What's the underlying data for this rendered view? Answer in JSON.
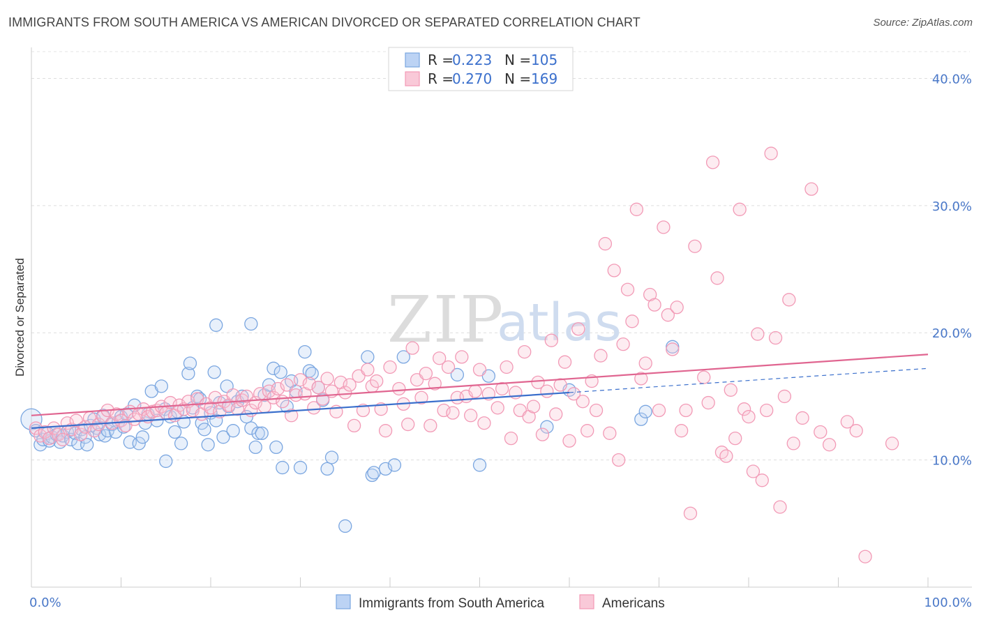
{
  "title": "IMMIGRANTS FROM SOUTH AMERICA VS AMERICAN DIVORCED OR SEPARATED CORRELATION CHART",
  "source": "Source: ZipAtlas.com",
  "watermark": {
    "part1": "ZIP",
    "part2": "atlas"
  },
  "chart_data": {
    "type": "scatter",
    "ylabel": "Divorced or Separated",
    "xlim": [
      0,
      100
    ],
    "ylim": [
      0,
      42
    ],
    "x_tick_labels": [
      "0.0%",
      "100.0%"
    ],
    "y_ticks": [
      10,
      20,
      30,
      40
    ],
    "y_tick_labels": [
      "10.0%",
      "20.0%",
      "30.0%",
      "40.0%"
    ],
    "grid": "horizontal dashed",
    "legend": {
      "position": "top-center",
      "rows": [
        {
          "r_label": "R = ",
          "r_value": "0.223",
          "n_label": "N = ",
          "n_value": "105"
        },
        {
          "r_label": "R = ",
          "r_value": "0.270",
          "n_label": "N = ",
          "n_value": "169"
        }
      ]
    },
    "series": [
      {
        "name": "Immigrants from South America",
        "color": "#7aa6e0",
        "trend_color": "#3a6fcc",
        "trend": {
          "x0": 0,
          "y0": 12.5,
          "x1": 60,
          "y1": 15.3,
          "dash_to_x": 100,
          "dash_to_y": 17.2
        },
        "points": [
          [
            0,
            13.2
          ],
          [
            0.5,
            12.3
          ],
          [
            1,
            11.2
          ],
          [
            1.3,
            11.6
          ],
          [
            1.8,
            12.1
          ],
          [
            2,
            11.5
          ],
          [
            2.3,
            11.8
          ],
          [
            2.8,
            12.0
          ],
          [
            3.2,
            11.4
          ],
          [
            3.5,
            11.9
          ],
          [
            4,
            12.2
          ],
          [
            4.4,
            11.6
          ],
          [
            4.9,
            12.1
          ],
          [
            5.2,
            11.3
          ],
          [
            5.6,
            12.4
          ],
          [
            6,
            11.8
          ],
          [
            6.2,
            11.2
          ],
          [
            6.6,
            12.7
          ],
          [
            7,
            13.2
          ],
          [
            7.3,
            12.5
          ],
          [
            7.6,
            12.0
          ],
          [
            8,
            13.5
          ],
          [
            8.2,
            11.9
          ],
          [
            8.5,
            12.3
          ],
          [
            9,
            12.8
          ],
          [
            9.4,
            12.2
          ],
          [
            9.7,
            13.0
          ],
          [
            10,
            13.4
          ],
          [
            10.3,
            12.6
          ],
          [
            10.6,
            13.6
          ],
          [
            11,
            11.4
          ],
          [
            11.5,
            14.3
          ],
          [
            12,
            11.3
          ],
          [
            12.4,
            11.8
          ],
          [
            12.7,
            12.9
          ],
          [
            13,
            13.6
          ],
          [
            13.4,
            15.4
          ],
          [
            14,
            13.1
          ],
          [
            14.5,
            15.8
          ],
          [
            14.9,
            14.0
          ],
          [
            15,
            9.9
          ],
          [
            15.5,
            13.4
          ],
          [
            16,
            12.2
          ],
          [
            16.3,
            13.8
          ],
          [
            16.7,
            11.3
          ],
          [
            17,
            13.0
          ],
          [
            17.5,
            16.8
          ],
          [
            17.7,
            17.6
          ],
          [
            18,
            14.1
          ],
          [
            18.5,
            15.0
          ],
          [
            18.8,
            14.8
          ],
          [
            19,
            12.9
          ],
          [
            19.3,
            12.4
          ],
          [
            19.7,
            11.2
          ],
          [
            20,
            13.7
          ],
          [
            20.4,
            16.9
          ],
          [
            20.6,
            13.1
          ],
          [
            21,
            14.5
          ],
          [
            21.4,
            11.8
          ],
          [
            21.8,
            15.8
          ],
          [
            22,
            14.2
          ],
          [
            22.5,
            12.3
          ],
          [
            23,
            14.6
          ],
          [
            23.5,
            15.0
          ],
          [
            24,
            13.4
          ],
          [
            24.5,
            12.5
          ],
          [
            25,
            11.0
          ],
          [
            25.3,
            12.1
          ],
          [
            25.7,
            12.1
          ],
          [
            26,
            15.1
          ],
          [
            26.5,
            15.9
          ],
          [
            27,
            17.2
          ],
          [
            27.3,
            11.0
          ],
          [
            27.8,
            16.9
          ],
          [
            28,
            9.4
          ],
          [
            28.5,
            14.2
          ],
          [
            29,
            16.2
          ],
          [
            29.5,
            15.4
          ],
          [
            30,
            9.4
          ],
          [
            30.5,
            18.5
          ],
          [
            31,
            17.0
          ],
          [
            31.3,
            16.8
          ],
          [
            32,
            15.7
          ],
          [
            32.5,
            14.7
          ],
          [
            33,
            9.3
          ],
          [
            33.5,
            10.2
          ],
          [
            35,
            4.8
          ],
          [
            37.5,
            18.1
          ],
          [
            38,
            8.8
          ],
          [
            38.2,
            9.0
          ],
          [
            39.5,
            9.3
          ],
          [
            40.5,
            9.6
          ],
          [
            41.5,
            18.1
          ],
          [
            20.6,
            20.6
          ],
          [
            24.5,
            20.7
          ],
          [
            47.5,
            16.7
          ],
          [
            50,
            9.6
          ],
          [
            51,
            16.6
          ],
          [
            57.5,
            12.6
          ],
          [
            60,
            15.5
          ],
          [
            68,
            13.2
          ],
          [
            68.5,
            13.8
          ],
          [
            71.5,
            18.9
          ]
        ]
      },
      {
        "name": "Americans",
        "color": "#f29ab6",
        "trend_color": "#e06590",
        "trend": {
          "x0": 0,
          "y0": 13.5,
          "x1": 100,
          "y1": 18.3
        },
        "points": [
          [
            0.5,
            12.5
          ],
          [
            1,
            11.9
          ],
          [
            1.5,
            12.2
          ],
          [
            2,
            11.7
          ],
          [
            2.5,
            12.5
          ],
          [
            3,
            12.0
          ],
          [
            3.5,
            11.6
          ],
          [
            4,
            12.9
          ],
          [
            4.5,
            12.4
          ],
          [
            5,
            13.1
          ],
          [
            5.5,
            12.0
          ],
          [
            6,
            12.6
          ],
          [
            6.5,
            13.3
          ],
          [
            7,
            12.3
          ],
          [
            7.5,
            12.8
          ],
          [
            8,
            13.4
          ],
          [
            8.5,
            13.9
          ],
          [
            9,
            12.9
          ],
          [
            9.5,
            13.6
          ],
          [
            10,
            13.1
          ],
          [
            10.5,
            12.7
          ],
          [
            11,
            13.8
          ],
          [
            11.5,
            13.2
          ],
          [
            12,
            13.6
          ],
          [
            12.5,
            14.0
          ],
          [
            13,
            13.4
          ],
          [
            13.5,
            13.8
          ],
          [
            14,
            13.9
          ],
          [
            14.5,
            14.2
          ],
          [
            15,
            13.7
          ],
          [
            15.5,
            14.5
          ],
          [
            16,
            13.5
          ],
          [
            16.5,
            14.3
          ],
          [
            17,
            14.0
          ],
          [
            17.5,
            14.6
          ],
          [
            18,
            13.9
          ],
          [
            18.5,
            14.8
          ],
          [
            19,
            13.6
          ],
          [
            19.5,
            14.4
          ],
          [
            20,
            14.1
          ],
          [
            20.5,
            14.9
          ],
          [
            21,
            13.8
          ],
          [
            21.5,
            14.6
          ],
          [
            22,
            14.3
          ],
          [
            22.5,
            15.1
          ],
          [
            23,
            14.0
          ],
          [
            23.5,
            14.7
          ],
          [
            24,
            15.0
          ],
          [
            24.5,
            13.9
          ],
          [
            25,
            14.5
          ],
          [
            25.5,
            15.2
          ],
          [
            26,
            14.2
          ],
          [
            26.5,
            15.4
          ],
          [
            27,
            14.9
          ],
          [
            27.5,
            15.6
          ],
          [
            28,
            14.6
          ],
          [
            28.5,
            15.9
          ],
          [
            29,
            13.5
          ],
          [
            29.5,
            15.1
          ],
          [
            30,
            16.3
          ],
          [
            30.5,
            15.2
          ],
          [
            31,
            16.0
          ],
          [
            31.5,
            14.1
          ],
          [
            32,
            15.7
          ],
          [
            32.5,
            14.8
          ],
          [
            33,
            16.4
          ],
          [
            33.5,
            15.4
          ],
          [
            34,
            13.8
          ],
          [
            34.5,
            16.1
          ],
          [
            35,
            15.3
          ],
          [
            35.5,
            15.9
          ],
          [
            36,
            12.7
          ],
          [
            36.5,
            16.6
          ],
          [
            37,
            13.9
          ],
          [
            37.5,
            17.1
          ],
          [
            38,
            15.8
          ],
          [
            38.5,
            16.2
          ],
          [
            39,
            14.0
          ],
          [
            39.5,
            12.3
          ],
          [
            40,
            17.3
          ],
          [
            41,
            15.6
          ],
          [
            41.5,
            14.4
          ],
          [
            42,
            12.8
          ],
          [
            42.5,
            18.8
          ],
          [
            43,
            16.3
          ],
          [
            43.5,
            14.9
          ],
          [
            44,
            16.8
          ],
          [
            44.5,
            12.7
          ],
          [
            45,
            16.0
          ],
          [
            45.5,
            18.0
          ],
          [
            46,
            13.9
          ],
          [
            46.5,
            17.3
          ],
          [
            47,
            13.7
          ],
          [
            47.5,
            14.9
          ],
          [
            48,
            18.1
          ],
          [
            48.5,
            15.0
          ],
          [
            49,
            13.5
          ],
          [
            49.5,
            15.4
          ],
          [
            50,
            17.1
          ],
          [
            50.5,
            12.9
          ],
          [
            51,
            15.2
          ],
          [
            52,
            14.1
          ],
          [
            52.5,
            15.6
          ],
          [
            53,
            17.3
          ],
          [
            53.5,
            11.7
          ],
          [
            54,
            15.3
          ],
          [
            54.5,
            13.9
          ],
          [
            55,
            18.5
          ],
          [
            55.5,
            13.4
          ],
          [
            56,
            14.2
          ],
          [
            56.5,
            16.1
          ],
          [
            57,
            12.0
          ],
          [
            57.5,
            15.4
          ],
          [
            58,
            19.4
          ],
          [
            58.5,
            13.6
          ],
          [
            59,
            15.9
          ],
          [
            59.5,
            17.7
          ],
          [
            60,
            11.5
          ],
          [
            60.5,
            15.2
          ],
          [
            61,
            20.3
          ],
          [
            61.5,
            14.6
          ],
          [
            62,
            12.3
          ],
          [
            62.5,
            16.2
          ],
          [
            63,
            13.9
          ],
          [
            63.5,
            18.2
          ],
          [
            64,
            27.0
          ],
          [
            64.5,
            12.1
          ],
          [
            65,
            24.9
          ],
          [
            65.5,
            10.0
          ],
          [
            66,
            19.1
          ],
          [
            66.5,
            23.4
          ],
          [
            67,
            20.9
          ],
          [
            67.5,
            29.7
          ],
          [
            68,
            16.4
          ],
          [
            68.5,
            17.6
          ],
          [
            69,
            23.0
          ],
          [
            69.5,
            22.2
          ],
          [
            70,
            13.9
          ],
          [
            70.5,
            28.3
          ],
          [
            71,
            21.4
          ],
          [
            71.5,
            18.7
          ],
          [
            72,
            22.0
          ],
          [
            72.5,
            12.3
          ],
          [
            73,
            13.9
          ],
          [
            73.5,
            5.8
          ],
          [
            74,
            26.8
          ],
          [
            75,
            16.5
          ],
          [
            75.5,
            14.5
          ],
          [
            76,
            33.4
          ],
          [
            76.5,
            24.3
          ],
          [
            77,
            10.6
          ],
          [
            77.5,
            10.3
          ],
          [
            78,
            15.5
          ],
          [
            78.5,
            11.7
          ],
          [
            79,
            29.7
          ],
          [
            79.5,
            14.0
          ],
          [
            80,
            13.4
          ],
          [
            80.5,
            9.1
          ],
          [
            81,
            19.9
          ],
          [
            81.5,
            8.4
          ],
          [
            82,
            13.9
          ],
          [
            82.5,
            34.1
          ],
          [
            83,
            19.6
          ],
          [
            83.5,
            6.3
          ],
          [
            84,
            15.0
          ],
          [
            84.5,
            22.6
          ],
          [
            85,
            11.3
          ],
          [
            86,
            13.3
          ],
          [
            87,
            31.3
          ],
          [
            88,
            12.2
          ],
          [
            89,
            11.2
          ],
          [
            91,
            13.0
          ],
          [
            92,
            12.3
          ],
          [
            93,
            2.4
          ],
          [
            96,
            11.3
          ]
        ]
      }
    ]
  }
}
